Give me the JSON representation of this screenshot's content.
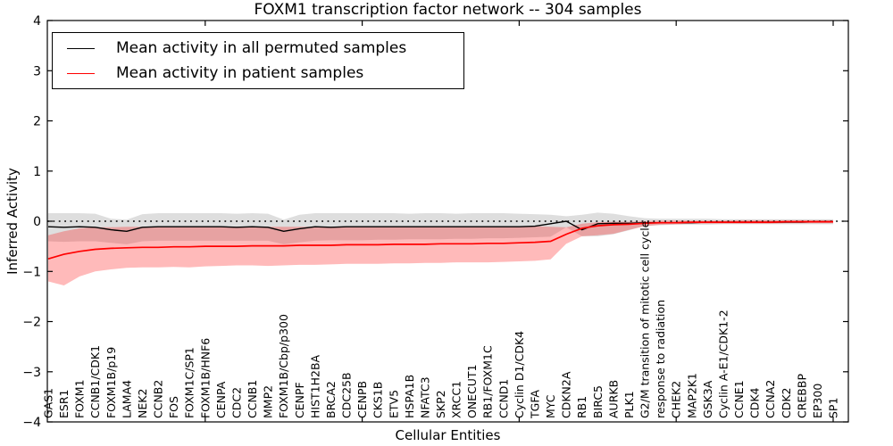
{
  "figure": {
    "title": "FOXM1 transcription factor network -- 304 samples",
    "xlabel": "Cellular Entities",
    "ylabel": "Inferred Activity"
  },
  "legend": {
    "position": "upper left",
    "entries": [
      {
        "label": "Mean activity in all permuted samples",
        "color": "#000000"
      },
      {
        "label": "Mean activity in patient samples",
        "color": "#ff0000"
      }
    ]
  },
  "chart_data": {
    "type": "line",
    "title": "FOXM1 transcription factor network -- 304 samples",
    "xlabel": "Cellular Entities",
    "ylabel": "Inferred Activity",
    "ylim": [
      -4,
      4
    ],
    "yticks": [
      4,
      3,
      2,
      1,
      0,
      -1,
      -2,
      -3,
      -4
    ],
    "xtick_marks": [
      10,
      20,
      30,
      40,
      50
    ],
    "grid": false,
    "zero_line": {
      "y": 0,
      "style": "dotted",
      "color": "#000000"
    },
    "background": "#ffffff",
    "categories": [
      "GAS1",
      "ESR1",
      "FOXM1",
      "CCNB1/CDK1",
      "FOXM1B/p19",
      "LAMA4",
      "NEK2",
      "CCNB2",
      "FOS",
      "FOXM1C/SP1",
      "FOXM1B/HNF6",
      "CENPA",
      "CDC2",
      "CCNB1",
      "MMP2",
      "FOXM1B/Cbp/p300",
      "CENPF",
      "HIST1H2BA",
      "BRCA2",
      "CDC25B",
      "CENPB",
      "CKS1B",
      "ETV5",
      "HSPA1B",
      "NFATC3",
      "SKP2",
      "XRCC1",
      "ONECUT1",
      "RB1/FOXM1C",
      "CCND1",
      "Cyclin D1/CDK4",
      "TGFA",
      "MYC",
      "CDKN2A",
      "RB1",
      "BIRC5",
      "AURKB",
      "PLK1",
      "G2/M transition of mitotic cell cycle",
      "response to radiation",
      "CHEK2",
      "MAP2K1",
      "GSK3A",
      "Cyclin A-E1/CDK1-2",
      "CCNE1",
      "CDK4",
      "CCNA2",
      "CDK2",
      "CREBBP",
      "EP300",
      "SP1"
    ],
    "series": [
      {
        "name": "Mean activity in all permuted samples",
        "color": "#000000",
        "line_width": 1.4,
        "band_color": "#000000",
        "band_opacity": 0.13,
        "values": [
          -0.11,
          -0.12,
          -0.11,
          -0.12,
          -0.17,
          -0.2,
          -0.12,
          -0.11,
          -0.11,
          -0.11,
          -0.11,
          -0.11,
          -0.12,
          -0.11,
          -0.12,
          -0.2,
          -0.15,
          -0.11,
          -0.12,
          -0.11,
          -0.11,
          -0.11,
          -0.11,
          -0.11,
          -0.11,
          -0.11,
          -0.11,
          -0.11,
          -0.11,
          -0.11,
          -0.11,
          -0.1,
          -0.05,
          0.0,
          -0.17,
          -0.05,
          -0.04,
          -0.04,
          -0.03,
          -0.03,
          -0.03,
          -0.03,
          -0.02,
          -0.02,
          -0.02,
          -0.02,
          -0.02,
          -0.02,
          -0.02,
          -0.01,
          -0.01
        ],
        "band_upper": [
          0.16,
          0.16,
          0.16,
          0.15,
          0.05,
          0.03,
          0.14,
          0.16,
          0.16,
          0.16,
          0.16,
          0.16,
          0.15,
          0.16,
          0.15,
          0.03,
          0.13,
          0.16,
          0.16,
          0.16,
          0.16,
          0.16,
          0.16,
          0.15,
          0.16,
          0.16,
          0.15,
          0.16,
          0.16,
          0.16,
          0.15,
          0.14,
          0.13,
          0.1,
          0.13,
          0.17,
          0.15,
          0.1,
          0.06,
          0.05,
          0.05,
          0.05,
          0.05,
          0.04,
          0.04,
          0.04,
          0.04,
          0.04,
          0.04,
          0.04,
          0.04
        ],
        "band_lower": [
          -0.4,
          -0.41,
          -0.4,
          -0.4,
          -0.43,
          -0.46,
          -0.4,
          -0.39,
          -0.39,
          -0.39,
          -0.39,
          -0.39,
          -0.39,
          -0.39,
          -0.39,
          -0.46,
          -0.42,
          -0.39,
          -0.38,
          -0.38,
          -0.38,
          -0.37,
          -0.37,
          -0.36,
          -0.36,
          -0.36,
          -0.35,
          -0.35,
          -0.34,
          -0.34,
          -0.33,
          -0.32,
          -0.31,
          -0.12,
          -0.3,
          -0.3,
          -0.26,
          -0.18,
          -0.09,
          -0.08,
          -0.07,
          -0.07,
          -0.07,
          -0.06,
          -0.06,
          -0.06,
          -0.06,
          -0.06,
          -0.06,
          -0.06,
          -0.06
        ]
      },
      {
        "name": "Mean activity in patient samples",
        "color": "#ff0000",
        "line_width": 1.7,
        "band_color": "#ff0000",
        "band_opacity": 0.27,
        "values": [
          -0.75,
          -0.66,
          -0.6,
          -0.56,
          -0.54,
          -0.53,
          -0.52,
          -0.52,
          -0.51,
          -0.51,
          -0.5,
          -0.5,
          -0.5,
          -0.49,
          -0.49,
          -0.49,
          -0.48,
          -0.48,
          -0.48,
          -0.47,
          -0.47,
          -0.47,
          -0.46,
          -0.46,
          -0.46,
          -0.45,
          -0.45,
          -0.45,
          -0.44,
          -0.44,
          -0.43,
          -0.42,
          -0.4,
          -0.26,
          -0.14,
          -0.09,
          -0.07,
          -0.06,
          -0.04,
          -0.03,
          -0.03,
          -0.02,
          -0.02,
          -0.02,
          -0.02,
          -0.02,
          -0.02,
          -0.01,
          -0.01,
          -0.01,
          -0.01
        ],
        "band_upper": [
          -0.28,
          -0.2,
          -0.14,
          -0.12,
          -0.12,
          -0.11,
          -0.11,
          -0.11,
          -0.11,
          -0.11,
          -0.11,
          -0.11,
          -0.11,
          -0.11,
          -0.11,
          -0.11,
          -0.11,
          -0.11,
          -0.11,
          -0.1,
          -0.1,
          -0.1,
          -0.1,
          -0.1,
          -0.1,
          -0.1,
          -0.1,
          -0.1,
          -0.1,
          -0.1,
          -0.1,
          -0.1,
          -0.11,
          -0.12,
          -0.05,
          -0.02,
          -0.01,
          -0.01,
          0.0,
          0.01,
          0.01,
          0.01,
          0.01,
          0.01,
          0.02,
          0.02,
          0.02,
          0.02,
          0.02,
          0.02,
          0.02
        ],
        "band_lower": [
          -1.2,
          -1.28,
          -1.1,
          -1.0,
          -0.96,
          -0.93,
          -0.92,
          -0.92,
          -0.91,
          -0.92,
          -0.9,
          -0.89,
          -0.88,
          -0.88,
          -0.89,
          -0.88,
          -0.87,
          -0.87,
          -0.86,
          -0.85,
          -0.85,
          -0.85,
          -0.84,
          -0.84,
          -0.83,
          -0.83,
          -0.82,
          -0.82,
          -0.82,
          -0.81,
          -0.8,
          -0.79,
          -0.76,
          -0.45,
          -0.3,
          -0.28,
          -0.25,
          -0.17,
          -0.1,
          -0.07,
          -0.06,
          -0.05,
          -0.05,
          -0.05,
          -0.05,
          -0.05,
          -0.05,
          -0.04,
          -0.04,
          -0.04,
          -0.04
        ]
      }
    ],
    "legend_position": "upper left"
  }
}
